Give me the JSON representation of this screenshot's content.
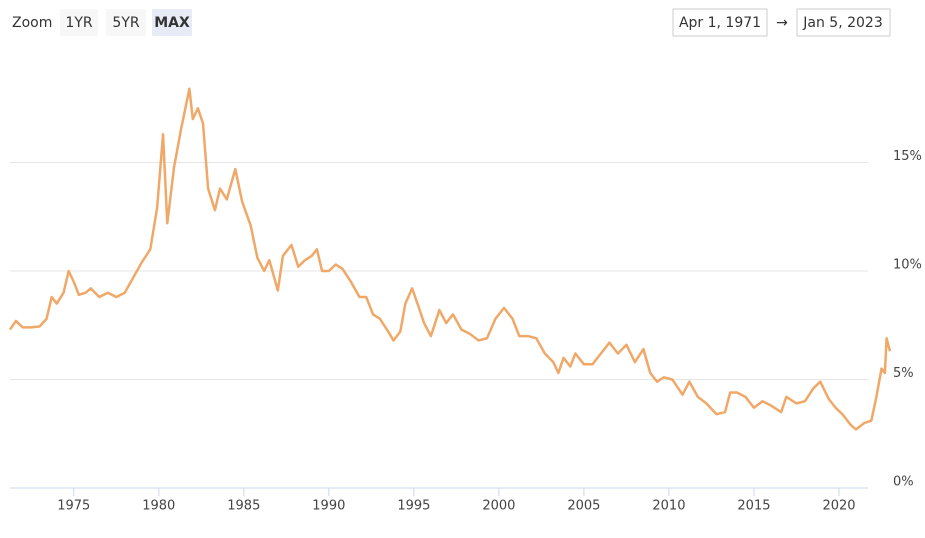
{
  "zoom_label": "Zoom",
  "zoom_buttons": [
    "1YR",
    "5YR",
    "MAX"
  ],
  "range_from": "Apr 1, 1971",
  "range_arrow": "→",
  "range_to": "Jan 5, 2023",
  "chart_data": {
    "type": "line",
    "color": "#f0a868",
    "grid": true,
    "xlim": [
      1971.25,
      2023.0
    ],
    "ylim": [
      0,
      20
    ],
    "xticks": [
      1975,
      1980,
      1985,
      1990,
      1995,
      2000,
      2005,
      2010,
      2015,
      2020
    ],
    "yticks": [
      {
        "value": 0,
        "label": "0%"
      },
      {
        "value": 5,
        "label": "5%"
      },
      {
        "value": 10,
        "label": "10%"
      },
      {
        "value": 15,
        "label": "15%"
      }
    ],
    "x": [
      1971.25,
      1971.6,
      1972.0,
      1972.5,
      1973.0,
      1973.4,
      1973.7,
      1974.0,
      1974.4,
      1974.7,
      1975.0,
      1975.3,
      1975.7,
      1976.0,
      1976.5,
      1977.0,
      1977.5,
      1978.0,
      1978.5,
      1979.0,
      1979.5,
      1979.9,
      1980.25,
      1980.5,
      1980.9,
      1981.3,
      1981.8,
      1982.0,
      1982.3,
      1982.6,
      1982.9,
      1983.3,
      1983.6,
      1984.0,
      1984.5,
      1984.9,
      1985.4,
      1985.8,
      1986.2,
      1986.5,
      1987.0,
      1987.3,
      1987.8,
      1988.2,
      1988.6,
      1989.0,
      1989.3,
      1989.6,
      1990.0,
      1990.4,
      1990.8,
      1991.3,
      1991.8,
      1992.2,
      1992.6,
      1993.0,
      1993.5,
      1993.8,
      1994.2,
      1994.5,
      1994.9,
      1995.3,
      1995.6,
      1996.0,
      1996.5,
      1996.9,
      1997.3,
      1997.8,
      1998.3,
      1998.8,
      1999.3,
      1999.8,
      2000.3,
      2000.8,
      2001.2,
      2001.7,
      2002.2,
      2002.7,
      2003.2,
      2003.5,
      2003.8,
      2004.2,
      2004.5,
      2005.0,
      2005.5,
      2006.0,
      2006.5,
      2007.0,
      2007.5,
      2008.0,
      2008.5,
      2008.9,
      2009.3,
      2009.7,
      2010.2,
      2010.8,
      2011.2,
      2011.7,
      2012.2,
      2012.8,
      2013.3,
      2013.6,
      2014.0,
      2014.5,
      2015.0,
      2015.5,
      2016.0,
      2016.6,
      2016.9,
      2017.5,
      2018.0,
      2018.5,
      2018.9,
      2019.4,
      2019.8,
      2020.2,
      2020.7,
      2021.0,
      2021.5,
      2021.9,
      2022.2,
      2022.5,
      2022.7,
      2022.8,
      2023.0
    ],
    "values": [
      7.3,
      7.7,
      7.4,
      7.4,
      7.45,
      7.8,
      8.8,
      8.5,
      9.0,
      10.0,
      9.5,
      8.9,
      9.0,
      9.2,
      8.8,
      9.0,
      8.8,
      9.0,
      9.7,
      10.4,
      11.0,
      12.9,
      16.3,
      12.2,
      14.8,
      16.5,
      18.4,
      17.0,
      17.5,
      16.8,
      13.8,
      12.8,
      13.8,
      13.3,
      14.7,
      13.2,
      12.1,
      10.6,
      10.0,
      10.5,
      9.1,
      10.7,
      11.2,
      10.2,
      10.5,
      10.7,
      11.0,
      10.0,
      10.0,
      10.3,
      10.1,
      9.5,
      8.8,
      8.8,
      8.0,
      7.8,
      7.2,
      6.8,
      7.2,
      8.5,
      9.2,
      8.3,
      7.6,
      7.0,
      8.2,
      7.6,
      8.0,
      7.3,
      7.1,
      6.8,
      6.9,
      7.8,
      8.3,
      7.8,
      7.0,
      7.0,
      6.9,
      6.2,
      5.8,
      5.3,
      6.0,
      5.6,
      6.2,
      5.7,
      5.7,
      6.2,
      6.7,
      6.2,
      6.6,
      5.8,
      6.4,
      5.3,
      4.9,
      5.1,
      5.0,
      4.3,
      4.9,
      4.2,
      3.9,
      3.4,
      3.5,
      4.4,
      4.4,
      4.2,
      3.7,
      4.0,
      3.8,
      3.5,
      4.2,
      3.9,
      4.0,
      4.6,
      4.9,
      4.1,
      3.7,
      3.4,
      2.9,
      2.7,
      3.0,
      3.1,
      4.2,
      5.5,
      5.3,
      6.9,
      6.3
    ]
  }
}
